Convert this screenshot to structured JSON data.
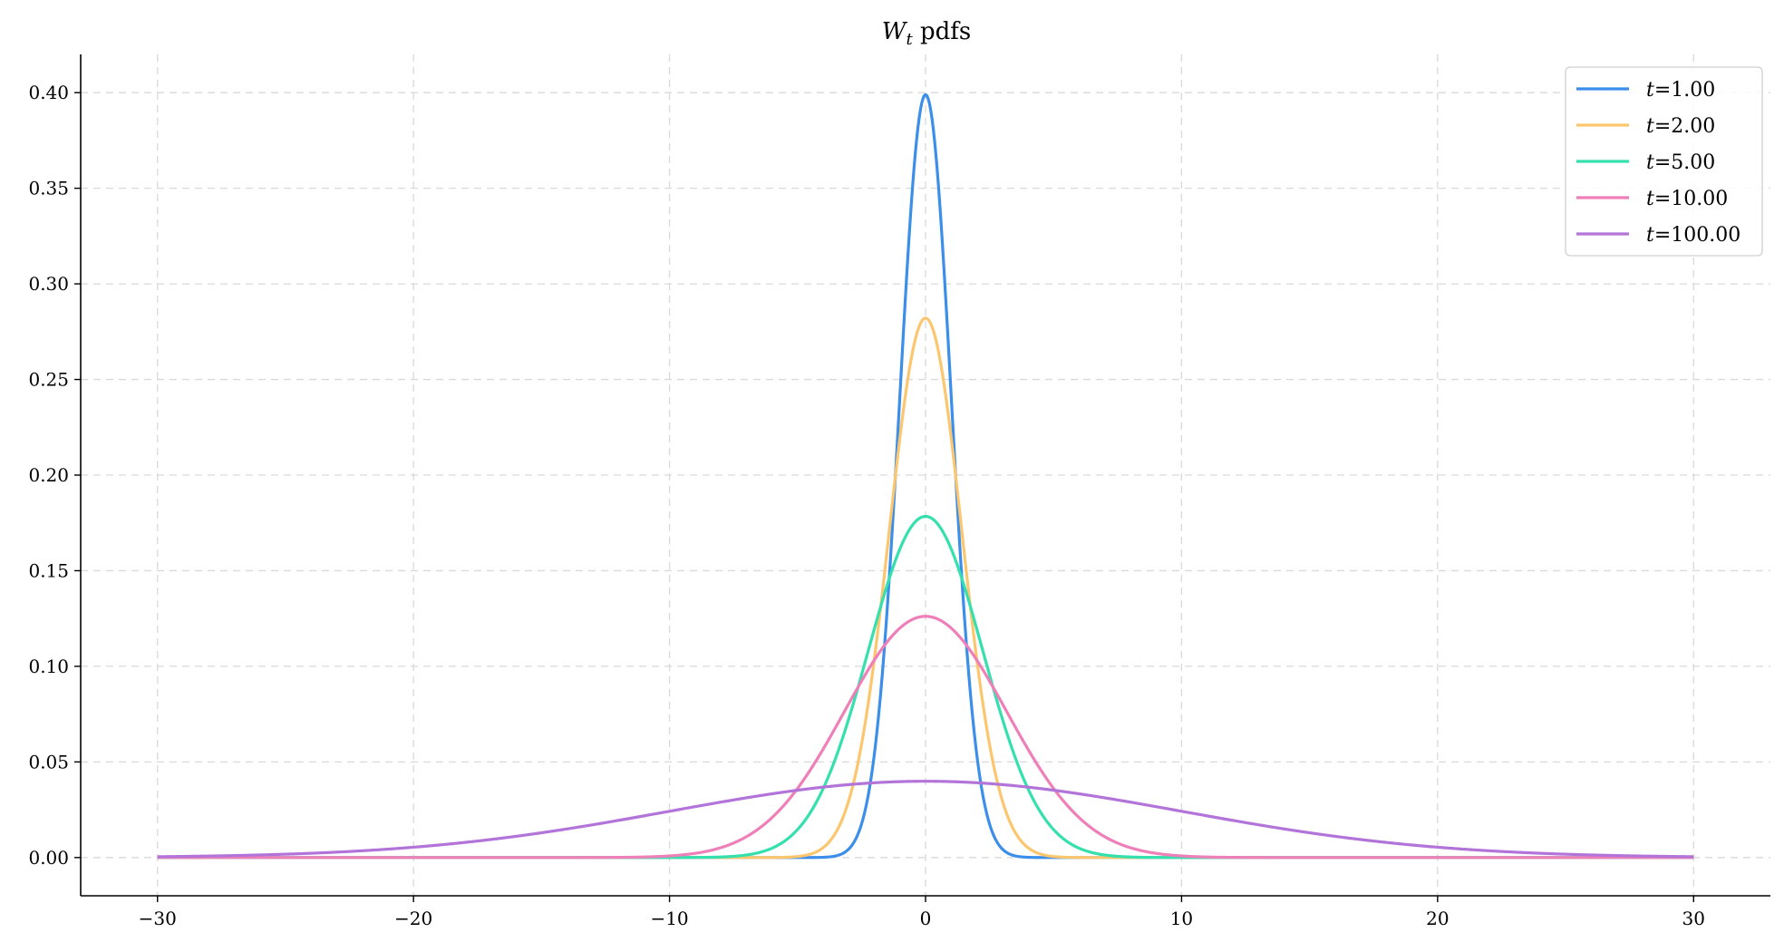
{
  "chart_data": {
    "type": "line",
    "title": "W_t pdfs",
    "title_main": "W",
    "title_sub": "t",
    "title_rest": " pdfs",
    "xlabel": "",
    "ylabel": "",
    "xlim": [
      -33,
      33
    ],
    "ylim": [
      -0.02,
      0.42
    ],
    "x_range": [
      -30,
      30
    ],
    "xticks": [
      -30,
      -20,
      -10,
      0,
      10,
      20,
      30
    ],
    "xtick_labels": [
      "−30",
      "−20",
      "−10",
      "0",
      "10",
      "20",
      "30"
    ],
    "yticks": [
      0.0,
      0.05,
      0.1,
      0.15,
      0.2,
      0.25,
      0.3,
      0.35,
      0.4
    ],
    "ytick_labels": [
      "0.00",
      "0.05",
      "0.10",
      "0.15",
      "0.20",
      "0.25",
      "0.30",
      "0.35",
      "0.40"
    ],
    "grid": true,
    "legend_position": "top-right",
    "series": [
      {
        "name": "t=1.00",
        "legend_var": "t",
        "legend_value": "=1.00",
        "t": 1,
        "color": "#3b8eea",
        "peak": 0.399
      },
      {
        "name": "t=2.00",
        "legend_var": "t",
        "legend_value": "=2.00",
        "t": 2,
        "color": "#fcc66e",
        "peak": 0.282
      },
      {
        "name": "t=5.00",
        "legend_var": "t",
        "legend_value": "=5.00",
        "t": 5,
        "color": "#34e0ad",
        "peak": 0.178
      },
      {
        "name": "t=10.00",
        "legend_var": "t",
        "legend_value": "=10.00",
        "t": 10,
        "color": "#ef7fb8",
        "peak": 0.126
      },
      {
        "name": "t=100.00",
        "legend_var": "t",
        "legend_value": "=100.00",
        "t": 100,
        "color": "#b274d9",
        "peak": 0.0399
      }
    ]
  }
}
